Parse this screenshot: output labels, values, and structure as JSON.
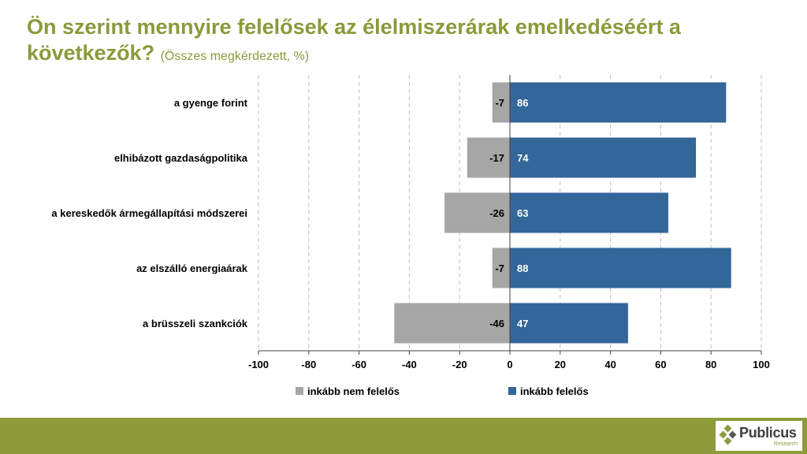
{
  "header": {
    "title": "Ön szerint mennyire felelősek az élelmiszerárak emelkedéséért a következők?",
    "subtitle": "(Összes megkérdezett, %)"
  },
  "chart_data": {
    "type": "bar",
    "orientation": "horizontal",
    "stacked": "diverging",
    "categories": [
      "a gyenge forint",
      "elhibázott gazdaságpolitika",
      "a kereskedők ármegállapítási módszerei",
      "az elszálló energiaárak",
      "a brüsszeli szankciók"
    ],
    "series": [
      {
        "name": "inkább nem felelős",
        "values": [
          -7,
          -17,
          -26,
          -7,
          -46
        ],
        "color": "#a6a6a6",
        "label_color": "#000000"
      },
      {
        "name": "inkább felelős",
        "values": [
          86,
          74,
          63,
          88,
          47
        ],
        "color": "#336699",
        "label_color": "#ffffff"
      }
    ],
    "xlim": [
      -100,
      100
    ],
    "xticks": [
      "-100",
      "-80",
      "-60",
      "-40",
      "-20",
      "0",
      "20",
      "40",
      "60",
      "80",
      "100"
    ],
    "grid": "vertical-dashed",
    "legend": "bottom"
  },
  "brand": {
    "name": "Publicus",
    "sub": "Research",
    "accent": "#8d9b3c",
    "title_color": "#8a9a3b"
  }
}
